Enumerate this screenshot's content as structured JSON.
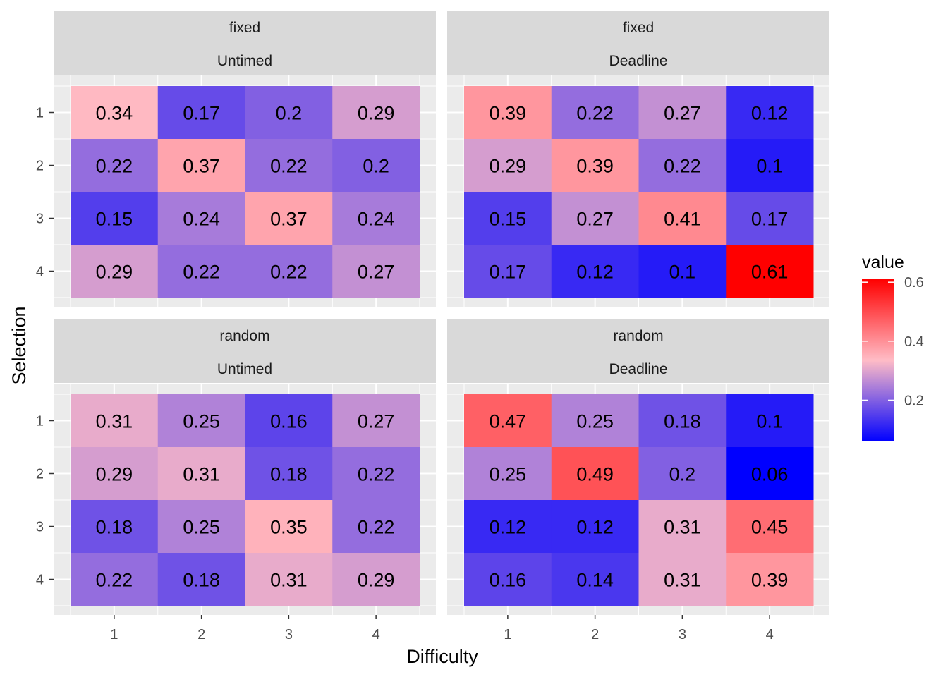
{
  "chart_data": {
    "type": "heatmap",
    "xlabel": "Difficulty",
    "ylabel": "Selection",
    "x_categories": [
      "1",
      "2",
      "3",
      "4"
    ],
    "y_categories": [
      "1",
      "2",
      "3",
      "4"
    ],
    "color_scale": {
      "title": "value",
      "low": "#0000ff",
      "mid": "#ffbcc6",
      "high": "#ff0000",
      "domain": [
        0.06,
        0.61
      ],
      "ticks": [
        0.2,
        0.4,
        0.6
      ],
      "tick_labels": [
        "0.2",
        "0.4",
        "0.6"
      ]
    },
    "panels": [
      {
        "label_top": "fixed",
        "label_bottom": "Untimed",
        "values": [
          [
            0.34,
            0.17,
            0.2,
            0.29
          ],
          [
            0.22,
            0.37,
            0.22,
            0.2
          ],
          [
            0.15,
            0.24,
            0.37,
            0.24
          ],
          [
            0.29,
            0.22,
            0.22,
            0.27
          ]
        ],
        "labels": [
          [
            "0.34",
            "0.17",
            "0.2",
            "0.29"
          ],
          [
            "0.22",
            "0.37",
            "0.22",
            "0.2"
          ],
          [
            "0.15",
            "0.24",
            "0.37",
            "0.24"
          ],
          [
            "0.29",
            "0.22",
            "0.22",
            "0.27"
          ]
        ]
      },
      {
        "label_top": "fixed",
        "label_bottom": "Deadline",
        "values": [
          [
            0.39,
            0.22,
            0.27,
            0.12
          ],
          [
            0.29,
            0.39,
            0.22,
            0.1
          ],
          [
            0.15,
            0.27,
            0.41,
            0.17
          ],
          [
            0.17,
            0.12,
            0.1,
            0.61
          ]
        ],
        "labels": [
          [
            "0.39",
            "0.22",
            "0.27",
            "0.12"
          ],
          [
            "0.29",
            "0.39",
            "0.22",
            "0.1"
          ],
          [
            "0.15",
            "0.27",
            "0.41",
            "0.17"
          ],
          [
            "0.17",
            "0.12",
            "0.1",
            "0.61"
          ]
        ]
      },
      {
        "label_top": "random",
        "label_bottom": "Untimed",
        "values": [
          [
            0.31,
            0.25,
            0.16,
            0.27
          ],
          [
            0.29,
            0.31,
            0.18,
            0.22
          ],
          [
            0.18,
            0.25,
            0.35,
            0.22
          ],
          [
            0.22,
            0.18,
            0.31,
            0.29
          ]
        ],
        "labels": [
          [
            "0.31",
            "0.25",
            "0.16",
            "0.27"
          ],
          [
            "0.29",
            "0.31",
            "0.18",
            "0.22"
          ],
          [
            "0.18",
            "0.25",
            "0.35",
            "0.22"
          ],
          [
            "0.22",
            "0.18",
            "0.31",
            "0.29"
          ]
        ]
      },
      {
        "label_top": "random",
        "label_bottom": "Deadline",
        "values": [
          [
            0.47,
            0.25,
            0.18,
            0.1
          ],
          [
            0.25,
            0.49,
            0.2,
            0.06
          ],
          [
            0.12,
            0.12,
            0.31,
            0.45
          ],
          [
            0.16,
            0.14,
            0.31,
            0.39
          ]
        ],
        "labels": [
          [
            "0.47",
            "0.25",
            "0.18",
            "0.1"
          ],
          [
            "0.25",
            "0.49",
            "0.2",
            "0.06"
          ],
          [
            "0.12",
            "0.12",
            "0.31",
            "0.45"
          ],
          [
            "0.16",
            "0.14",
            "0.31",
            "0.39"
          ]
        ]
      }
    ],
    "grid": true,
    "legend_position": "right"
  }
}
